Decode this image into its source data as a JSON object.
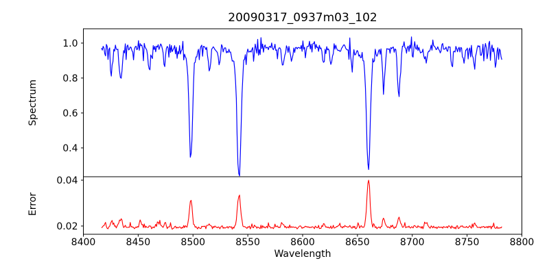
{
  "figure": {
    "background": "#ffffff",
    "frame_color": "#000000",
    "text_color": "#000000"
  },
  "chart_data": {
    "type": "line",
    "title": "20090317_0937m03_102",
    "xlabel": "Wavelength",
    "xlim": [
      8400,
      8800
    ],
    "xticks": {
      "values": [
        8400,
        8450,
        8500,
        8550,
        8600,
        8650,
        8700,
        8750,
        8800
      ],
      "labels": [
        "8400",
        "8450",
        "8500",
        "8550",
        "8600",
        "8650",
        "8700",
        "8750",
        "8800"
      ]
    },
    "x_data_range": [
      8416.5,
      8782
    ],
    "x_step": 0.75,
    "grid": false,
    "legend": "none",
    "panels": [
      {
        "name": "spectrum",
        "ylabel": "Spectrum",
        "ylim": [
          0.235,
          1.082
        ],
        "yticks": {
          "values": [
            0.4,
            0.6,
            0.8,
            1.0
          ],
          "labels": [
            "0.4",
            "0.6",
            "0.8",
            "1.0"
          ]
        },
        "series": {
          "name": "spectrum-flux",
          "color": "#0000ff",
          "line_width": 1.2,
          "continuum": 0.97,
          "noise_amplitude": 0.02,
          "peak_max": 1.05,
          "absorption_lines": [
            {
              "center": 8426,
              "min": 0.84,
              "sigma": 1.0
            },
            {
              "center": 8434,
              "min": 0.79,
              "sigma": 1.3
            },
            {
              "center": 8460,
              "min": 0.86,
              "sigma": 1.0
            },
            {
              "center": 8474,
              "min": 0.87,
              "sigma": 0.9
            },
            {
              "center": 8498,
              "min": 0.4,
              "sigma": 1.5
            },
            {
              "center": 8515,
              "min": 0.82,
              "sigma": 1.0
            },
            {
              "center": 8524,
              "min": 0.88,
              "sigma": 0.9
            },
            {
              "center": 8542,
              "min": 0.27,
              "sigma": 1.7
            },
            {
              "center": 8582,
              "min": 0.845,
              "sigma": 1.0
            },
            {
              "center": 8590,
              "min": 0.88,
              "sigma": 0.9
            },
            {
              "center": 8619,
              "min": 0.88,
              "sigma": 0.9
            },
            {
              "center": 8626,
              "min": 0.89,
              "sigma": 0.9
            },
            {
              "center": 8645,
              "min": 0.855,
              "sigma": 0.9
            },
            {
              "center": 8660,
              "min": 0.31,
              "sigma": 1.6
            },
            {
              "center": 8674,
              "min": 0.77,
              "sigma": 1.1
            },
            {
              "center": 8688,
              "min": 0.7,
              "sigma": 1.2
            },
            {
              "center": 8713,
              "min": 0.87,
              "sigma": 0.9
            },
            {
              "center": 8736,
              "min": 0.88,
              "sigma": 0.9
            },
            {
              "center": 8747,
              "min": 0.87,
              "sigma": 0.9
            },
            {
              "center": 8757,
              "min": 0.86,
              "sigma": 0.9
            },
            {
              "center": 8776,
              "min": 0.86,
              "sigma": 0.9
            }
          ]
        }
      },
      {
        "name": "error",
        "ylabel": "Error",
        "ylim": [
          0.0164,
          0.0415
        ],
        "yticks": {
          "values": [
            0.02,
            0.04
          ],
          "labels": [
            "0.02",
            "0.04"
          ]
        },
        "series": {
          "name": "error-level",
          "color": "#ff0000",
          "line_width": 1.1,
          "baseline": 0.0195,
          "noise_amplitude": 0.0006,
          "emission_peaks": [
            {
              "center": 8426,
              "max": 0.0222,
              "sigma": 1.2
            },
            {
              "center": 8434,
              "max": 0.0228,
              "sigma": 1.5
            },
            {
              "center": 8452,
              "max": 0.0222,
              "sigma": 1.0
            },
            {
              "center": 8468,
              "max": 0.0218,
              "sigma": 1.0
            },
            {
              "center": 8498,
              "max": 0.0313,
              "sigma": 1.3
            },
            {
              "center": 8515,
              "max": 0.021,
              "sigma": 1.0
            },
            {
              "center": 8542,
              "max": 0.0337,
              "sigma": 1.5
            },
            {
              "center": 8582,
              "max": 0.0212,
              "sigma": 1.0
            },
            {
              "center": 8619,
              "max": 0.0208,
              "sigma": 1.0
            },
            {
              "center": 8660,
              "max": 0.0403,
              "sigma": 1.4
            },
            {
              "center": 8674,
              "max": 0.0233,
              "sigma": 1.1
            },
            {
              "center": 8688,
              "max": 0.024,
              "sigma": 1.1
            },
            {
              "center": 8713,
              "max": 0.0212,
              "sigma": 1.0
            },
            {
              "center": 8757,
              "max": 0.0214,
              "sigma": 1.0
            }
          ]
        }
      }
    ]
  }
}
